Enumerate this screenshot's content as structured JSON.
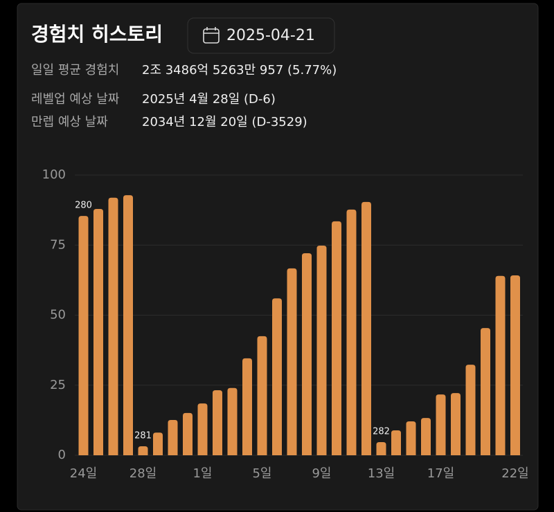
{
  "title": "경험치 히스토리",
  "date": "2025-04-21",
  "info": [
    {
      "label": "일일 평균 경험치",
      "value": "2조 3486억 5263만 957 (5.77%)"
    },
    {
      "label": "레벨업 예상 날짜",
      "value": "2025년 4월 28일 (D-6)"
    },
    {
      "label": "만렙 예상 날짜",
      "value": "2034년 12월 20일 (D-3529)"
    }
  ],
  "chart_data": {
    "type": "bar",
    "categories": [
      "24일",
      null,
      null,
      null,
      "28일",
      null,
      null,
      null,
      "1일",
      null,
      null,
      null,
      "5일",
      null,
      null,
      null,
      "9일",
      null,
      null,
      null,
      "13일",
      null,
      null,
      null,
      "17일",
      null,
      null,
      null,
      null,
      "22일"
    ],
    "values": [
      85.4,
      87.9,
      91.9,
      92.8,
      3.2,
      8.1,
      12.6,
      15.1,
      18.5,
      23.2,
      24.0,
      34.6,
      42.5,
      56.0,
      66.7,
      72.1,
      74.8,
      83.5,
      87.7,
      90.4,
      4.7,
      8.9,
      12.1,
      13.3,
      21.7,
      22.2,
      32.3,
      45.4,
      64.0,
      64.2
    ],
    "level_labels": [
      "280",
      null,
      null,
      null,
      "281",
      null,
      null,
      null,
      null,
      null,
      null,
      null,
      null,
      null,
      null,
      null,
      null,
      null,
      null,
      null,
      "282",
      null,
      null,
      null,
      null,
      null,
      null,
      null,
      null,
      null
    ],
    "color": "#e0914a",
    "ylim": [
      0,
      100
    ],
    "yticks": [
      0,
      25,
      50,
      75,
      100
    ],
    "grid": true
  }
}
